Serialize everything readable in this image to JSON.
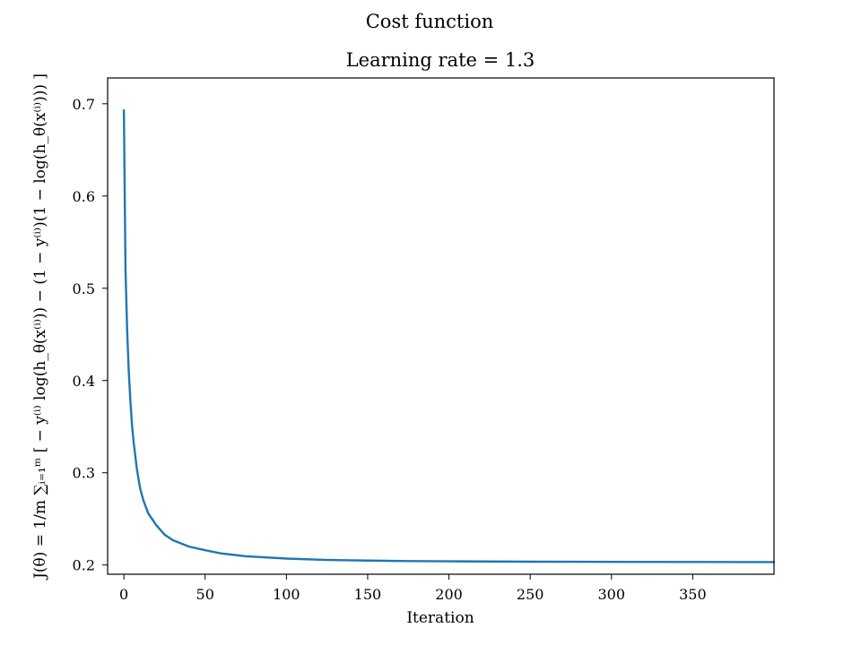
{
  "figure": {
    "suptitle": "Cost function"
  },
  "chart_data": {
    "type": "line",
    "title": "Learning rate = 1.3",
    "xlabel": "Iteration",
    "ylabel": "J(θ) = 1/m ∑ᵢ₌₁ᵐ [ − y⁽ⁱ⁾ log(h_θ(x⁽ⁱ⁾)) − (1 − y⁽ⁱ⁾)(1 − log(h_θ(x⁽ⁱ⁾))) ]",
    "xlim": [
      -10,
      400
    ],
    "ylim": [
      0.19,
      0.728
    ],
    "xticks": [
      0,
      50,
      100,
      150,
      200,
      250,
      300,
      350
    ],
    "yticks": [
      0.2,
      0.3,
      0.4,
      0.5,
      0.6,
      0.7
    ],
    "xtick_labels": [
      "0",
      "50",
      "100",
      "150",
      "200",
      "250",
      "300",
      "350"
    ],
    "ytick_labels": [
      "0.2",
      "0.3",
      "0.4",
      "0.5",
      "0.6",
      "0.7"
    ],
    "grid": false,
    "series": [
      {
        "color": "#1f77b4",
        "x": [
          0,
          1,
          2,
          3,
          4,
          5,
          6,
          8,
          10,
          12,
          15,
          20,
          25,
          30,
          40,
          50,
          60,
          75,
          100,
          125,
          150,
          175,
          200,
          250,
          300,
          350,
          400
        ],
        "y": [
          0.693,
          0.52,
          0.455,
          0.41,
          0.378,
          0.352,
          0.333,
          0.304,
          0.283,
          0.27,
          0.256,
          0.243,
          0.233,
          0.227,
          0.22,
          0.216,
          0.2125,
          0.2095,
          0.207,
          0.2055,
          0.2048,
          0.2043,
          0.204,
          0.2036,
          0.2034,
          0.2033,
          0.2032
        ]
      }
    ]
  }
}
